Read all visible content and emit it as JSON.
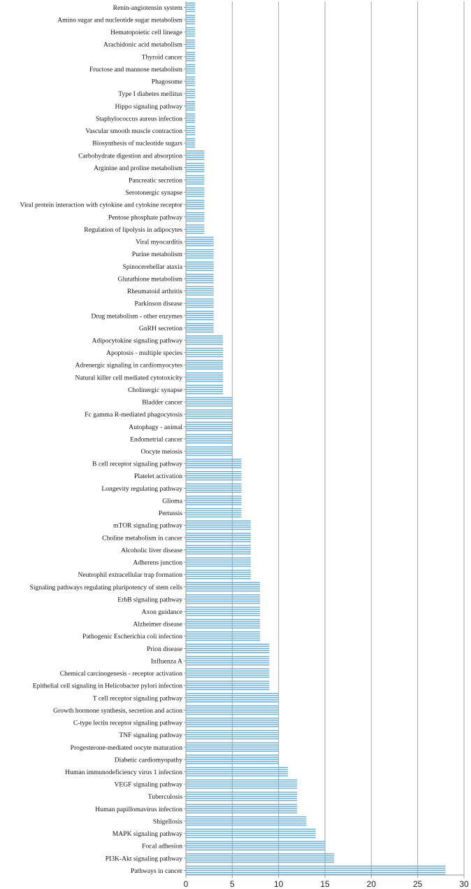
{
  "colors": {
    "bar": "#5DADE2",
    "grid": "#A6A6A6",
    "axis": "#9A9A9A",
    "text": "#111111"
  },
  "chart_data": {
    "type": "bar",
    "orientation": "horizontal",
    "title": "",
    "xlabel": "",
    "ylabel": "",
    "xlim": [
      0,
      30
    ],
    "xticks": [
      "0",
      "5",
      "10",
      "15",
      "20",
      "25",
      "30"
    ],
    "grid": true,
    "categories": [
      "Renin-angiotensin system",
      "Amino sugar and nucleotide sugar metabolism",
      "Hematopoietic cell lineage",
      "Arachidonic acid metabolism",
      "Thyroid cancer",
      "Fructose and mannose metabolism",
      "Phagosome",
      "Type I diabetes mellitus",
      "Hippo signaling pathway",
      "Staphylococcus aureus infection",
      "Vascular smooth muscle contraction",
      "Biosynthesis of nucleotide sugars",
      "Carbohydrate digestion and absorption",
      "Arginine and proline metabolism",
      "Pancreatic secretion",
      "Serotonergic synapse",
      "Viral protein interaction with cytokine and cytokine receptor",
      "Pentose phosphate pathway",
      "Regulation of lipolysis in adipocytes",
      "Viral myocarditis",
      "Purine metabolism",
      "Spinocerebellar ataxia",
      "Glutathione metabolism",
      "Rheumatoid arthritis",
      "Parkinson disease",
      "Drug metabolism - other enzymes",
      "GnRH secretion",
      "Adipocytokine signaling pathway",
      "Apoptosis - multiple species",
      "Adrenergic signaling in cardiomyocytes",
      "Natural killer cell mediated cytotoxicity",
      "Cholinergic synapse",
      "Bladder cancer",
      "Fc gamma R-mediated phagocytosis",
      "Autophagy - animal",
      "Endometrial cancer",
      "Oocyte meiosis",
      "B cell receptor signaling pathway",
      "Platelet activation",
      "Longevity regulating pathway",
      "Glioma",
      "Pertussis",
      "mTOR signaling pathway",
      "Choline metabolism in cancer",
      "Alcoholic liver disease",
      "Adherens junction",
      "Neutrophil extracellular trap formation",
      "Signaling pathways regulating pluripotency of stem cells",
      "ErbB signaling pathway",
      "Axon guidance",
      "Alzheimer disease",
      "Pathogenic Escherichia coli infection",
      "Prion disease",
      "Influenza A",
      "Chemical carcinogenesis - receptor activation",
      "Epithelial cell signaling in Helicobacter pylori infection",
      "T cell receptor signaling pathway",
      "Growth hormone synthesis, secretion and action",
      "C-type lectin receptor signaling pathway",
      "TNF signaling pathway",
      "Progesterone-mediated oocyte maturation",
      "Diabetic cardiomyopathy",
      "Human immunodeficiency virus 1 infection",
      "VEGF signaling pathway",
      "Tuberculosis",
      "Human papillomavirus infection",
      "Shigellosis",
      "MAPK signaling pathway",
      "Focal adhesion",
      "PI3K-Akt signaling pathway",
      "Pathways in cancer"
    ],
    "values": [
      1,
      1,
      1,
      1,
      1,
      1,
      1,
      1,
      1,
      1,
      1,
      1,
      2,
      2,
      2,
      2,
      2,
      2,
      2,
      3,
      3,
      3,
      3,
      3,
      3,
      3,
      3,
      4,
      4,
      4,
      4,
      4,
      5,
      5,
      5,
      5,
      5,
      6,
      6,
      6,
      6,
      6,
      7,
      7,
      7,
      7,
      7,
      8,
      8,
      8,
      8,
      8,
      9,
      9,
      9,
      9,
      10,
      10,
      10,
      10,
      10,
      10,
      11,
      12,
      12,
      12,
      13,
      14,
      15,
      16,
      28
    ]
  }
}
